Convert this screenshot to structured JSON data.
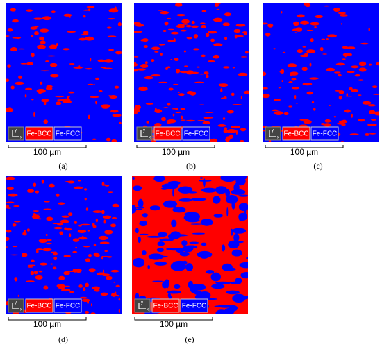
{
  "panels": [
    {
      "label": "(a)",
      "legend": [
        "Fe-BCC",
        "Fe-FCC"
      ],
      "scale_bar": "100 µm",
      "axis_icon": {
        "x": "x",
        "y": "y"
      }
    },
    {
      "label": "(b)",
      "legend": [
        "Fe-BCC",
        "Fe-FCC"
      ],
      "scale_bar": "100 µm",
      "axis_icon": {
        "x": "x",
        "y": "y"
      }
    },
    {
      "label": "(c)",
      "legend": [
        "Fe-BCC",
        "Fe-FCC"
      ],
      "scale_bar": "100 µm",
      "axis_icon": {
        "x": "x",
        "y": "y"
      }
    },
    {
      "label": "(d)",
      "legend": [
        "Fe-BCC",
        "Fe-FCC"
      ],
      "scale_bar": "100 µm",
      "axis_icon": {
        "x": "x",
        "y": "y"
      }
    },
    {
      "label": "(e)",
      "legend": [
        "Fe-BCC",
        "Fe-FCC"
      ],
      "scale_bar": "100 µm",
      "axis_icon": {
        "x": "x",
        "y": "y"
      }
    }
  ]
}
